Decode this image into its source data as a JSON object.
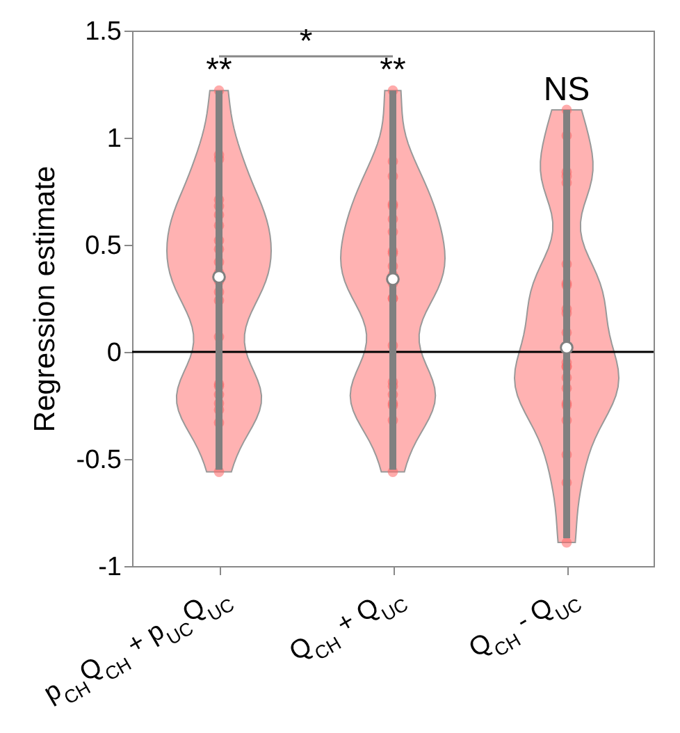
{
  "chart_data": {
    "type": "scatter",
    "ylabel": "Regression estimate",
    "categories": [
      "p$_{CH}$Q$_{CH}$ + p$_{UC}$Q$_{UC}$",
      "Q$_{CH}$ + Q$_{UC}$",
      "Q$_{CH}$ - Q$_{UC}$"
    ],
    "ylim": [
      -1,
      1.5
    ],
    "yticks": [
      -1,
      -0.5,
      0,
      0.5,
      1,
      1.5
    ],
    "marker": "circle",
    "series": [
      {
        "color": "#ff6666",
        "x": [
          "p$_{CH}$Q$_{CH}$ + p$_{UC}$Q$_{UC}$",
          "p$_{CH}$Q$_{CH}$ + p$_{UC}$Q$_{UC}$",
          "p$_{CH}$Q$_{CH}$ + p$_{UC}$Q$_{UC}$",
          "p$_{CH}$Q$_{CH}$ + p$_{UC}$Q$_{UC}$",
          "p$_{CH}$Q$_{CH}$ + p$_{UC}$Q$_{UC}$",
          "p$_{CH}$Q$_{CH}$ + p$_{UC}$Q$_{UC}$",
          "p$_{CH}$Q$_{CH}$ + p$_{UC}$Q$_{UC}$",
          "p$_{CH}$Q$_{CH}$ + p$_{UC}$Q$_{UC}$",
          "p$_{CH}$Q$_{CH}$ + p$_{UC}$Q$_{UC}$",
          "p$_{CH}$Q$_{CH}$ + p$_{UC}$Q$_{UC}$",
          "p$_{CH}$Q$_{CH}$ + p$_{UC}$Q$_{UC}$",
          "p$_{CH}$Q$_{CH}$ + p$_{UC}$Q$_{UC}$",
          "p$_{CH}$Q$_{CH}$ + p$_{UC}$Q$_{UC}$",
          "p$_{CH}$Q$_{CH}$ + p$_{UC}$Q$_{UC}$",
          "p$_{CH}$Q$_{CH}$ + p$_{UC}$Q$_{UC}$",
          "p$_{CH}$Q$_{CH}$ + p$_{UC}$Q$_{UC}$",
          "p$_{CH}$Q$_{CH}$ + p$_{UC}$Q$_{UC}$",
          "p$_{CH}$Q$_{CH}$ + p$_{UC}$Q$_{UC}$",
          "p$_{CH}$Q$_{CH}$ + p$_{UC}$Q$_{UC}$",
          "p$_{CH}$Q$_{CH}$ + p$_{UC}$Q$_{UC}$",
          "p$_{CH}$Q$_{CH}$ + p$_{UC}$Q$_{UC}$",
          "p$_{CH}$Q$_{CH}$ + p$_{UC}$Q$_{UC}$",
          "Q$_{CH}$ + Q$_{UC}$",
          "Q$_{CH}$ + Q$_{UC}$",
          "Q$_{CH}$ + Q$_{UC}$",
          "Q$_{CH}$ + Q$_{UC}$",
          "Q$_{CH}$ + Q$_{UC}$",
          "Q$_{CH}$ + Q$_{UC}$",
          "Q$_{CH}$ + Q$_{UC}$",
          "Q$_{CH}$ + Q$_{UC}$",
          "Q$_{CH}$ + Q$_{UC}$",
          "Q$_{CH}$ + Q$_{UC}$",
          "Q$_{CH}$ + Q$_{UC}$",
          "Q$_{CH}$ + Q$_{UC}$",
          "Q$_{CH}$ + Q$_{UC}$",
          "Q$_{CH}$ + Q$_{UC}$",
          "Q$_{CH}$ + Q$_{UC}$",
          "Q$_{CH}$ + Q$_{UC}$",
          "Q$_{CH}$ + Q$_{UC}$",
          "Q$_{CH}$ + Q$_{UC}$",
          "Q$_{CH}$ + Q$_{UC}$",
          "Q$_{CH}$ + Q$_{UC}$",
          "Q$_{CH}$ + Q$_{UC}$",
          "Q$_{CH}$ + Q$_{UC}$",
          "Q$_{CH}$ - Q$_{UC}$",
          "Q$_{CH}$ - Q$_{UC}$",
          "Q$_{CH}$ - Q$_{UC}$",
          "Q$_{CH}$ - Q$_{UC}$",
          "Q$_{CH}$ - Q$_{UC}$",
          "Q$_{CH}$ - Q$_{UC}$",
          "Q$_{CH}$ - Q$_{UC}$",
          "Q$_{CH}$ - Q$_{UC}$",
          "Q$_{CH}$ - Q$_{UC}$",
          "Q$_{CH}$ - Q$_{UC}$",
          "Q$_{CH}$ - Q$_{UC}$",
          "Q$_{CH}$ - Q$_{UC}$",
          "Q$_{CH}$ - Q$_{UC}$",
          "Q$_{CH}$ - Q$_{UC}$",
          "Q$_{CH}$ - Q$_{UC}$",
          "Q$_{CH}$ - Q$_{UC}$",
          "Q$_{CH}$ - Q$_{UC}$",
          "Q$_{CH}$ - Q$_{UC}$",
          "Q$_{CH}$ - Q$_{UC}$",
          "Q$_{CH}$ - Q$_{UC}$",
          "Q$_{CH}$ - Q$_{UC}$",
          "Q$_{CH}$ - Q$_{UC}$"
        ],
        "values": [
          1.22,
          0.92,
          0.9,
          0.71,
          0.68,
          0.64,
          0.59,
          0.52,
          0.48,
          0.42,
          0.37,
          0.33,
          0.28,
          0.24,
          0.07,
          -0.15,
          -0.16,
          -0.2,
          -0.24,
          -0.27,
          -0.33,
          -0.56,
          1.22,
          0.89,
          0.82,
          0.69,
          0.68,
          0.62,
          0.56,
          0.47,
          0.46,
          0.4,
          0.32,
          0.25,
          0.25,
          0.03,
          -0.14,
          -0.16,
          -0.2,
          -0.24,
          -0.25,
          -0.32,
          -0.56,
          0.36,
          1.13,
          1.01,
          0.84,
          0.82,
          0.79,
          0.41,
          0.32,
          0.31,
          0.2,
          0.18,
          0.09,
          -0.05,
          -0.07,
          -0.07,
          -0.12,
          -0.17,
          -0.24,
          -0.25,
          -0.32,
          -0.48,
          -0.61,
          -0.89
        ]
      },
      {
        "color": "#ffffff",
        "values": [
          0.35,
          0.34,
          0.02
        ],
        "errors": [
          [
            -0.55,
            1.22
          ],
          [
            -0.55,
            1.22
          ],
          [
            -0.87,
            1.13
          ]
        ]
      }
    ],
    "ref_lines": [
      {
        "axis": "y",
        "value": 0,
        "color": "#000000"
      }
    ],
    "annotations": [
      "**",
      "**",
      "NS",
      "*"
    ]
  }
}
